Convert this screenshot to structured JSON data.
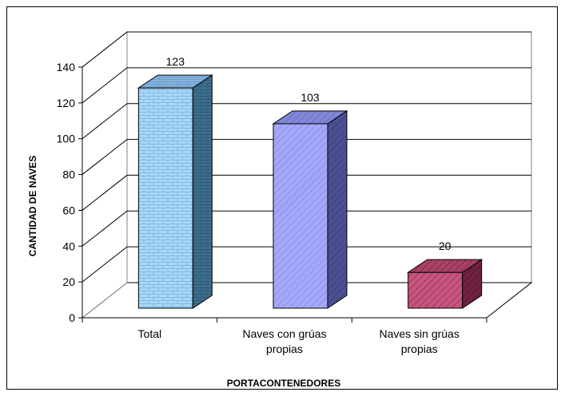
{
  "chart_data": {
    "type": "bar",
    "categories": [
      [
        "Total"
      ],
      [
        "Naves con grúas",
        "propias"
      ],
      [
        "Naves sin grúas",
        "propias"
      ]
    ],
    "values": [
      123,
      103,
      20
    ],
    "value_labels": [
      "123",
      "103",
      "20"
    ],
    "xlabel": "PORTACONTENEDORES",
    "ylabel": "CANTIDAD DE NAVES",
    "ylim": [
      0,
      140
    ],
    "yticks": [
      "0",
      "20",
      "40",
      "60",
      "80",
      "100",
      "120",
      "140"
    ],
    "grid": true,
    "legend": "none",
    "style": "3d-column",
    "colors": {
      "bar_1": "#a9d8f5",
      "bar_2": "#a3a8f8",
      "bar_3": "#b8406a",
      "wall": "#ffffff",
      "grid": "#000000"
    }
  }
}
